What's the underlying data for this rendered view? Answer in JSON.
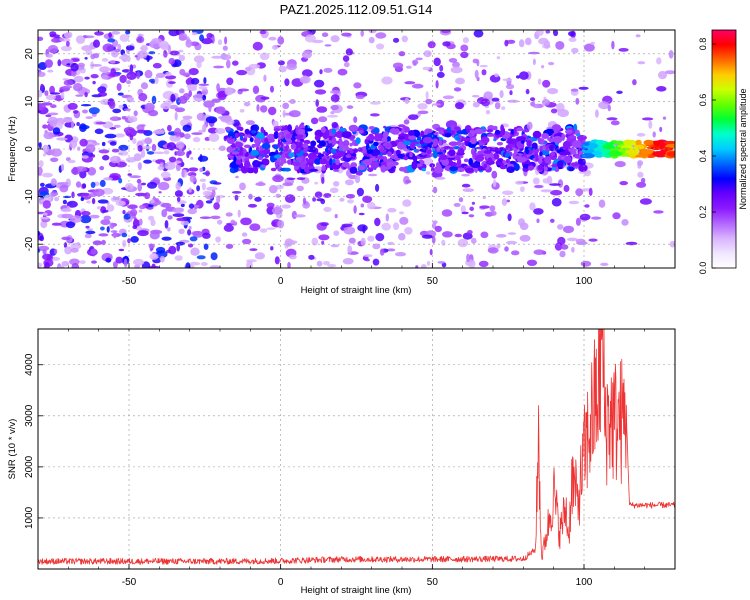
{
  "title": "PAZ1.2025.112.09.51.G14",
  "chart_data": [
    {
      "type": "heatmap",
      "xlabel": "Height of straight line (km)",
      "ylabel": "Frequency (Hz)",
      "xlim": [
        -80,
        130
      ],
      "ylim": [
        -25,
        25
      ],
      "x_ticks": [
        -50,
        0,
        50,
        100
      ],
      "y_ticks": [
        -20,
        -10,
        0,
        10,
        20
      ],
      "x_tick_labels": [
        "-50",
        "0",
        "50",
        "100"
      ],
      "y_tick_labels": [
        "-20",
        "-10",
        "0",
        "10",
        "20"
      ],
      "colorbar": {
        "label": "Normalized spectral amplitude",
        "range": [
          0,
          0.85
        ],
        "ticks": [
          0.0,
          0.2,
          0.4,
          0.6,
          0.8
        ],
        "tick_labels": [
          "0.0",
          "0.2",
          "0.4",
          "0.6",
          "0.8"
        ],
        "colormap": [
          "#ffffff",
          "#f0e6ff",
          "#d9b3ff",
          "#b266ff",
          "#8c1aff",
          "#6600ff",
          "#0000ff",
          "#0066ff",
          "#00ccff",
          "#00ffcc",
          "#00ff33",
          "#66ff00",
          "#ccff00",
          "#ffcc00",
          "#ff6600",
          "#ff0000",
          "#ff0066"
        ]
      },
      "signal_band": {
        "frequency_hz": 0,
        "x_start": -18,
        "x_end": 130,
        "strong_from": 100,
        "peak_at": 125
      },
      "grid": true
    },
    {
      "type": "line",
      "xlabel": "Height of straight line (km)",
      "ylabel": "SNR (10 * v/v)",
      "xlim": [
        -80,
        130
      ],
      "ylim": [
        0,
        4700
      ],
      "x_ticks": [
        -50,
        0,
        50,
        100
      ],
      "y_ticks": [
        1000,
        2000,
        3000,
        4000
      ],
      "x_tick_labels": [
        "-50",
        "0",
        "50",
        "100"
      ],
      "y_tick_labels": [
        "1000",
        "2000",
        "3000",
        "4000"
      ],
      "grid": true,
      "series": [
        {
          "color": "#ee3333",
          "x": [
            -80,
            -50,
            -20,
            0,
            20,
            50,
            80,
            84,
            85,
            86,
            88,
            90,
            92,
            94,
            95,
            96,
            98,
            100,
            102,
            104,
            105,
            106,
            107,
            108,
            110,
            112,
            114,
            115,
            120,
            125,
            130
          ],
          "values": [
            150,
            150,
            150,
            160,
            190,
            190,
            200,
            380,
            2600,
            200,
            800,
            1500,
            700,
            1200,
            600,
            1800,
            1300,
            2200,
            2800,
            3300,
            3700,
            4700,
            2800,
            3000,
            2900,
            2900,
            2950,
            1250,
            1250,
            1250,
            1250
          ]
        }
      ]
    }
  ]
}
